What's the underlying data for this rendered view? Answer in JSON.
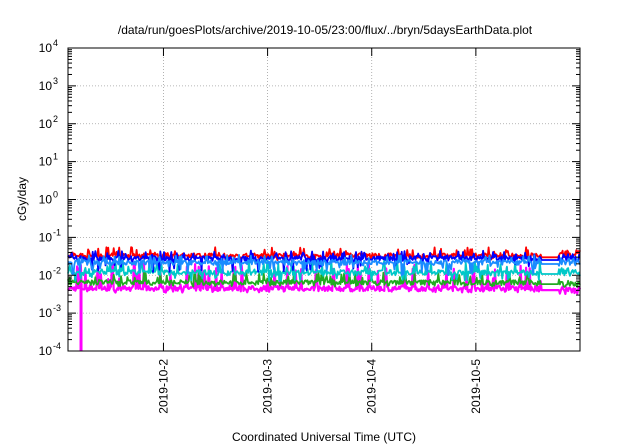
{
  "chart_data": {
    "type": "line",
    "title": "/data/run/goesPlots/archive/2019-10-05/23:00/flux/../bryn/5daysEarthData.plot",
    "xlabel": "Coordinated Universal Time (UTC)",
    "ylabel": "cGy/day",
    "yscale": "log",
    "ylim": [
      0.0001,
      10000
    ],
    "xlim": [
      "2019-10-01T02:00",
      "2019-10-06T00:00"
    ],
    "grid": true,
    "legend": "none",
    "x_ticks": [
      {
        "label": "2019-10-2",
        "value": "2019-10-02T00:00"
      },
      {
        "label": "2019-10-3",
        "value": "2019-10-03T00:00"
      },
      {
        "label": "2019-10-4",
        "value": "2019-10-04T00:00"
      },
      {
        "label": "2019-10-5",
        "value": "2019-10-05T00:00"
      }
    ],
    "y_ticks": [
      {
        "base": "10",
        "exp": "-4",
        "value": 0.0001
      },
      {
        "base": "10",
        "exp": "-3",
        "value": 0.001
      },
      {
        "base": "10",
        "exp": "-2",
        "value": 0.01
      },
      {
        "base": "10",
        "exp": "-1",
        "value": 0.1
      },
      {
        "base": "10",
        "exp": "0",
        "value": 1
      },
      {
        "base": "10",
        "exp": "1",
        "value": 10
      },
      {
        "base": "10",
        "exp": "2",
        "value": 100
      },
      {
        "base": "10",
        "exp": "3",
        "value": 1000
      },
      {
        "base": "10",
        "exp": "4",
        "value": 10000
      }
    ],
    "series": [
      {
        "color": "#ff0000",
        "baseline": 0.033,
        "spike_max": 0.055,
        "dip_min": 0.025,
        "end_level": 0.035
      },
      {
        "color": "#0000ff",
        "baseline": 0.028,
        "spike_max": 0.045,
        "dip_min": 0.012,
        "end_level": 0.028
      },
      {
        "color": "#1a8cff",
        "baseline": 0.022,
        "spike_max": 0.035,
        "dip_min": 0.01,
        "end_level": 0.022
      },
      {
        "color": "#00c8c8",
        "baseline": 0.012,
        "spike_max": 0.025,
        "dip_min": 0.007,
        "end_level": 0.012
      },
      {
        "color": "#22aa22",
        "baseline": 0.0065,
        "spike_max": 0.012,
        "dip_min": 0.005,
        "end_level": 0.006
      },
      {
        "color": "#ff00ff",
        "baseline": 0.0045,
        "spike_max": 0.02,
        "dip_min": 0.0035,
        "end_level": 0.004,
        "drop": {
          "x": "2019-10-01T05:00",
          "min": 0.0001
        }
      }
    ]
  }
}
